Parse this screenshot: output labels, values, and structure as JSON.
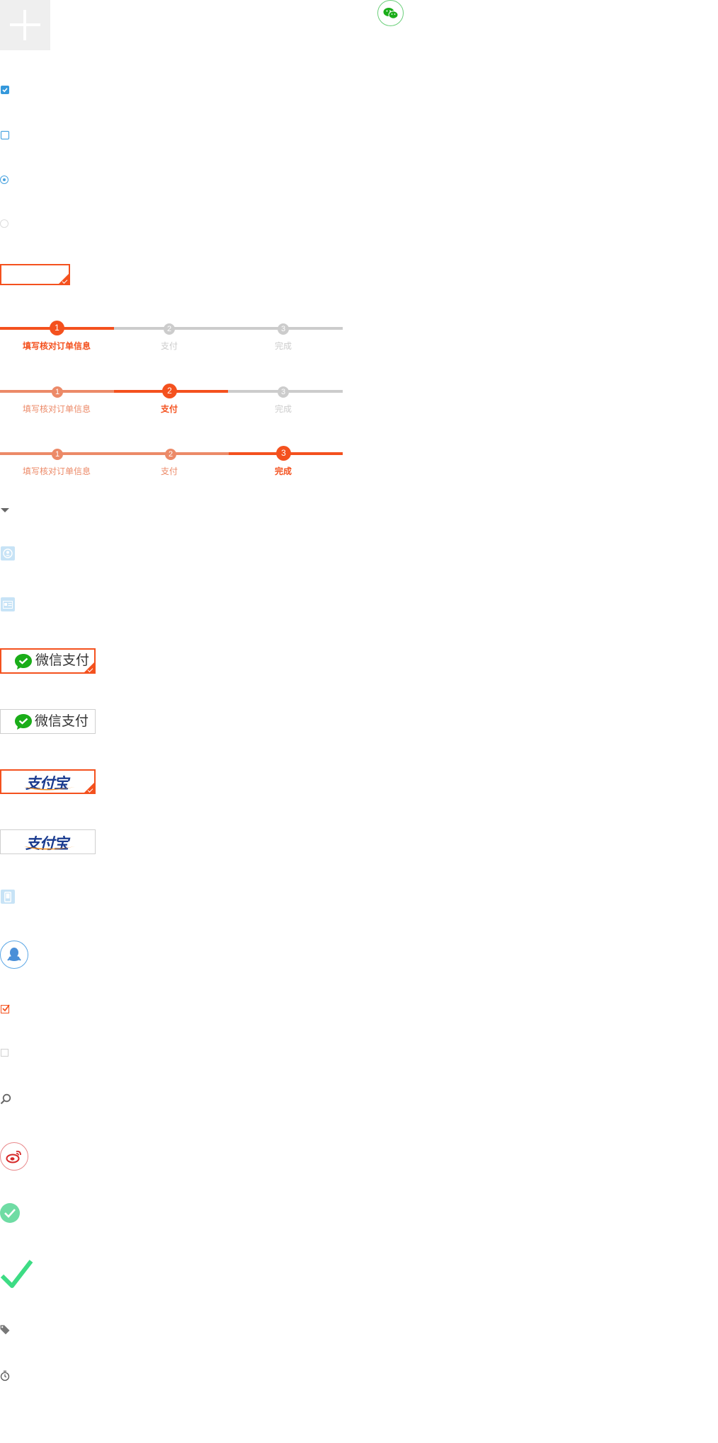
{
  "steps_labels": [
    "填写核对订单信息",
    "支付",
    "完成"
  ],
  "step_numbers": [
    "1",
    "2",
    "3"
  ],
  "pay_buttons": {
    "wechat_label": "微信支付",
    "alipay_label": "支付宝"
  },
  "colors": {
    "accent": "#f4511e",
    "accent_light": "#ec8a68",
    "inactive": "#cccccc",
    "blue": "#3498db",
    "green": "#6fdca4",
    "wechat_green": "#1aad19",
    "alipay_blue": "#1a3b8f"
  },
  "icons": [
    "add-icon",
    "wechat-icon",
    "user-icon",
    "id-card-icon",
    "qq-icon",
    "mobile-icon",
    "search-icon",
    "weibo-icon",
    "checkmark-icon",
    "tag-icon",
    "timer-icon"
  ]
}
